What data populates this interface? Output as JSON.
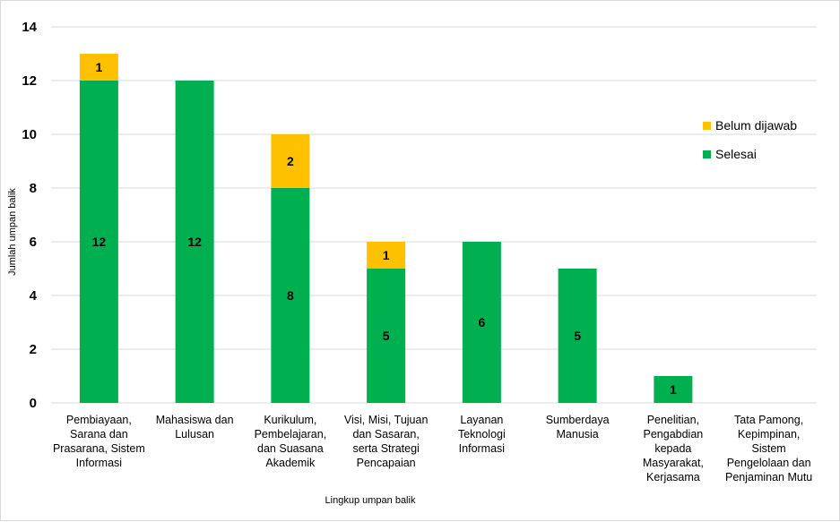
{
  "chart_data": {
    "type": "bar",
    "stacked": true,
    "xlabel": "Lingkup umpan balik",
    "ylabel": "Jumlah umpan balik",
    "ylim": [
      0,
      14
    ],
    "yticks": [
      0,
      2,
      4,
      6,
      8,
      10,
      12,
      14
    ],
    "grid": true,
    "legend_position": "right",
    "categories": [
      [
        "Pembiayaan,",
        "Sarana dan",
        "Prasarana, Sistem",
        "Informasi"
      ],
      [
        "Mahasiswa dan",
        "Lulusan"
      ],
      [
        "Kurikulum,",
        "Pembelajaran,",
        "dan Suasana",
        "Akademik"
      ],
      [
        "Visi, Misi, Tujuan",
        "dan Sasaran,",
        "serta Strategi",
        "Pencapaian"
      ],
      [
        "Layanan",
        "Teknologi",
        "Informasi"
      ],
      [
        "Sumberdaya",
        "Manusia"
      ],
      [
        "Penelitian,",
        "Pengabdian",
        "kepada",
        "Masyarakat,",
        "Kerjasama"
      ],
      [
        "Tata Pamong,",
        "Kepimpinan,",
        "Sistem",
        "Pengelolaan dan",
        "Penjaminan Mutu"
      ]
    ],
    "series": [
      {
        "name": "Selesai",
        "color": "#00b050",
        "values": [
          12,
          12,
          8,
          5,
          6,
          5,
          1,
          0
        ]
      },
      {
        "name": "Belum dijawab",
        "color": "#ffc000",
        "values": [
          1,
          0,
          2,
          1,
          0,
          0,
          0,
          0
        ]
      }
    ],
    "legend_order": [
      "Belum dijawab",
      "Selesai"
    ]
  }
}
